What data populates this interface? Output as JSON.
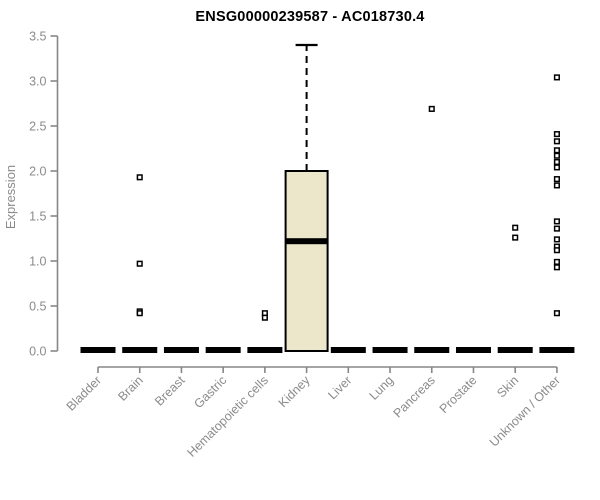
{
  "title": "ENSG00000239587 - AC018730.4",
  "chart_data": {
    "type": "boxplot",
    "title": "ENSG00000239587 - AC018730.4",
    "xlabel": "",
    "ylabel": "Expression",
    "ylim": [
      0,
      3.5
    ],
    "yticks": [
      0,
      0.5,
      1,
      1.5,
      2,
      2.5,
      3,
      3.5
    ],
    "grid": false,
    "legend": false,
    "marker_style": "open-square",
    "whisker_style": "dashed",
    "categories": [
      "Bladder",
      "Brain",
      "Breast",
      "Gastric",
      "Hematopoietic cells",
      "Kidney",
      "Liver",
      "Lung",
      "Pancreas",
      "Prostate",
      "Skin",
      "Unknown / Other"
    ],
    "boxes": [
      {
        "category": "Bladder",
        "min": 0,
        "q1": 0,
        "median": 0,
        "q3": 0,
        "max": 0,
        "outliers": []
      },
      {
        "category": "Brain",
        "min": 0,
        "q1": 0,
        "median": 0,
        "q3": 0,
        "max": 0,
        "outliers": [
          1.93,
          0.97,
          0.44,
          0.42
        ]
      },
      {
        "category": "Breast",
        "min": 0,
        "q1": 0,
        "median": 0,
        "q3": 0,
        "max": 0,
        "outliers": []
      },
      {
        "category": "Gastric",
        "min": 0,
        "q1": 0,
        "median": 0,
        "q3": 0,
        "max": 0,
        "outliers": []
      },
      {
        "category": "Hematopoietic cells",
        "min": 0,
        "q1": 0,
        "median": 0,
        "q3": 0,
        "max": 0,
        "outliers": [
          0.42,
          0.37
        ]
      },
      {
        "category": "Kidney",
        "min": 0,
        "q1": 0,
        "median": 1.22,
        "q3": 2.0,
        "max": 3.4,
        "outliers": []
      },
      {
        "category": "Liver",
        "min": 0,
        "q1": 0,
        "median": 0,
        "q3": 0,
        "max": 0,
        "outliers": []
      },
      {
        "category": "Lung",
        "min": 0,
        "q1": 0,
        "median": 0,
        "q3": 0,
        "max": 0,
        "outliers": []
      },
      {
        "category": "Pancreas",
        "min": 0,
        "q1": 0,
        "median": 0,
        "q3": 0,
        "max": 0,
        "outliers": [
          2.69
        ]
      },
      {
        "category": "Prostate",
        "min": 0,
        "q1": 0,
        "median": 0,
        "q3": 0,
        "max": 0,
        "outliers": []
      },
      {
        "category": "Skin",
        "min": 0,
        "q1": 0,
        "median": 0,
        "q3": 0,
        "max": 0,
        "outliers": [
          1.37,
          1.26
        ]
      },
      {
        "category": "Unknown / Other",
        "min": 0,
        "q1": 0,
        "median": 0,
        "q3": 0,
        "max": 0,
        "outliers": [
          3.04,
          2.41,
          2.33,
          2.23,
          2.17,
          2.1,
          2.04,
          1.91,
          1.84,
          1.44,
          1.36,
          1.24,
          1.16,
          1.12,
          0.99,
          0.93,
          0.42
        ]
      }
    ],
    "colors": {
      "box_fill": "#ece6cb",
      "box_stroke": "#000000",
      "median": "#000000",
      "zero_bar": "#000000",
      "whisker": "#000000",
      "outlier_stroke": "#000000",
      "outlier_fill": "#ffffff",
      "axis": "#878787",
      "tick_label": "#8b8b8b",
      "title": "#000000",
      "background": "#ffffff"
    }
  }
}
